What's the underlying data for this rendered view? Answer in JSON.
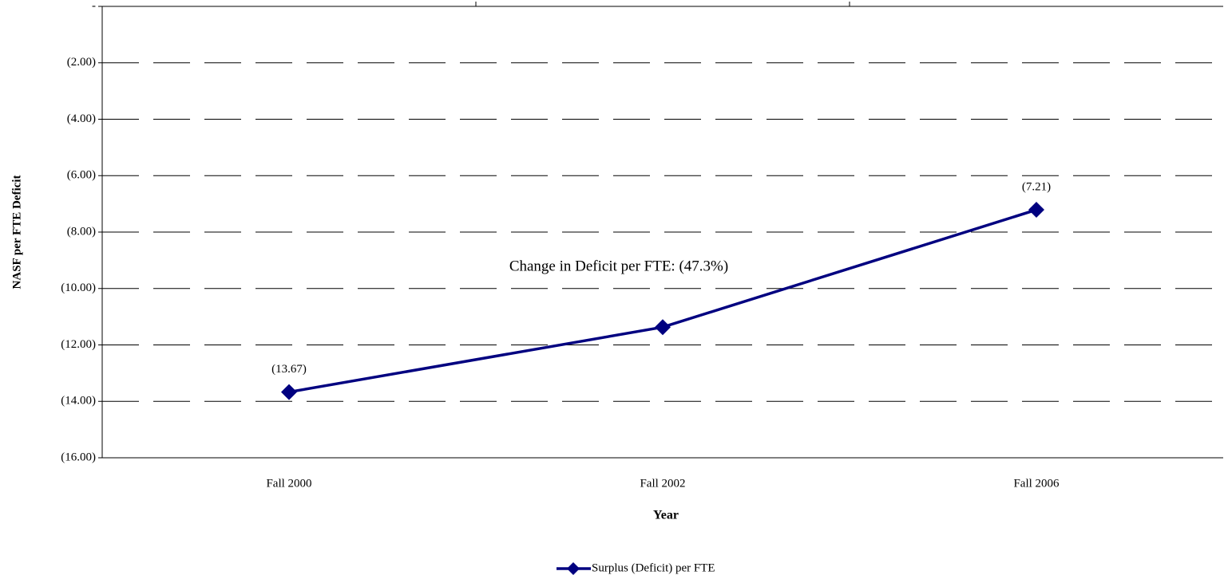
{
  "chart_data": {
    "type": "line",
    "x_label": "Year",
    "y_label": "NASF per FTE Deficit",
    "annotation": "Change in Deficit per FTE: (47.3%)",
    "categories": [
      "Fall 2000",
      "Fall 2002",
      "Fall 2006"
    ],
    "series": [
      {
        "name": "Surplus (Deficit) per FTE",
        "color": "#000080",
        "values": [
          -13.67,
          -11.37,
          -7.21
        ],
        "value_labels": [
          "(13.67)",
          null,
          "(7.21)"
        ]
      }
    ],
    "ylim": [
      -16,
      0
    ],
    "yticks": [
      {
        "value": 0,
        "label": "-"
      },
      {
        "value": -2,
        "label": "(2.00)"
      },
      {
        "value": -4,
        "label": "(4.00)"
      },
      {
        "value": -6,
        "label": "(6.00)"
      },
      {
        "value": -8,
        "label": "(8.00)"
      },
      {
        "value": -10,
        "label": "(10.00)"
      },
      {
        "value": -12,
        "label": "(12.00)"
      },
      {
        "value": -14,
        "label": "(14.00)"
      },
      {
        "value": -16,
        "label": "(16.00)"
      }
    ],
    "grid": true,
    "legend": "bottom"
  }
}
